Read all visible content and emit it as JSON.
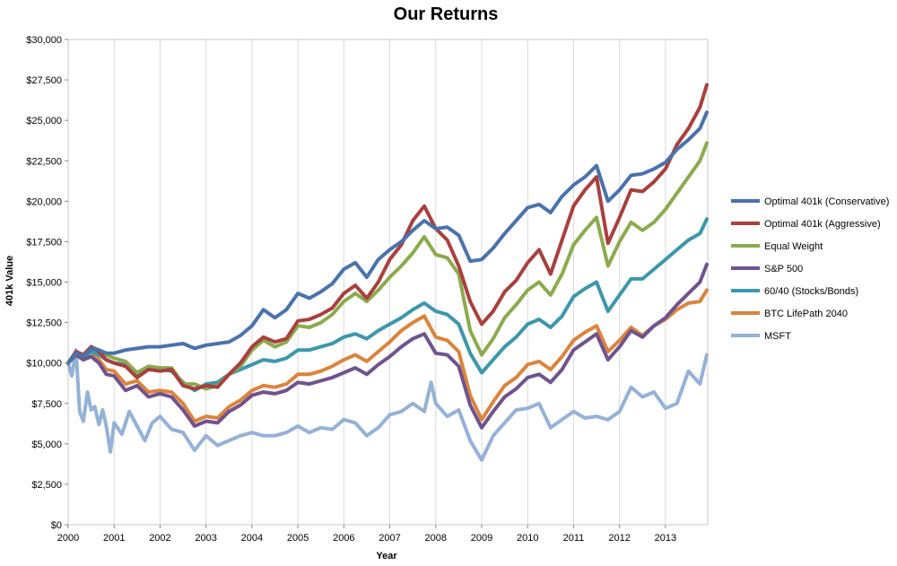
{
  "chart_data": {
    "type": "line",
    "title": "Our Returns",
    "xlabel": "Year",
    "ylabel": "401k Value",
    "xlim": [
      2000.0,
      2013.92
    ],
    "ylim": [
      0,
      30000
    ],
    "y_ticks": [
      0,
      2500,
      5000,
      7500,
      10000,
      12500,
      15000,
      17500,
      20000,
      22500,
      25000,
      27500,
      30000
    ],
    "y_tick_labels": [
      "$0",
      "$2,500",
      "$5,000",
      "$7,500",
      "$10,000",
      "$12,500",
      "$15,000",
      "$17,500",
      "$20,000",
      "$22,500",
      "$25,000",
      "$27,500",
      "$30,000"
    ],
    "x_ticks": [
      2000,
      2001,
      2002,
      2003,
      2004,
      2005,
      2006,
      2007,
      2008,
      2009,
      2010,
      2011,
      2012,
      2013
    ],
    "x_tick_labels": [
      "2000",
      "2001",
      "2002",
      "2003",
      "2004",
      "2005",
      "2006",
      "2007",
      "2008",
      "2009",
      "2010",
      "2011",
      "2012",
      "2013"
    ],
    "grid": "vertical",
    "legend": "right",
    "series": [
      {
        "name": "Optimal 401k (Conservative)",
        "color": "#4A72AC",
        "x": [
          2000.0,
          2000.17,
          2000.33,
          2000.5,
          2000.67,
          2000.83,
          2001.0,
          2001.25,
          2001.5,
          2001.75,
          2002.0,
          2002.25,
          2002.5,
          2002.75,
          2003.0,
          2003.25,
          2003.5,
          2003.75,
          2004.0,
          2004.25,
          2004.5,
          2004.75,
          2005.0,
          2005.25,
          2005.5,
          2005.75,
          2006.0,
          2006.25,
          2006.5,
          2006.75,
          2007.0,
          2007.25,
          2007.5,
          2007.75,
          2008.0,
          2008.25,
          2008.5,
          2008.75,
          2009.0,
          2009.25,
          2009.5,
          2009.75,
          2010.0,
          2010.25,
          2010.5,
          2010.75,
          2011.0,
          2011.25,
          2011.5,
          2011.75,
          2012.0,
          2012.25,
          2012.5,
          2012.75,
          2013.0,
          2013.25,
          2013.5,
          2013.75,
          2013.9
        ],
        "y": [
          10000,
          10600,
          10400,
          10900,
          10800,
          10600,
          10600,
          10800,
          10900,
          11000,
          11000,
          11100,
          11200,
          10900,
          11100,
          11200,
          11300,
          11700,
          12300,
          13300,
          12800,
          13300,
          14300,
          14000,
          14400,
          14900,
          15800,
          16200,
          15300,
          16400,
          17000,
          17500,
          18200,
          18800,
          18300,
          18400,
          17900,
          16300,
          16400,
          17100,
          18000,
          18800,
          19600,
          19800,
          19300,
          20300,
          21000,
          21500,
          22200,
          20000,
          20700,
          21600,
          21700,
          22000,
          22400,
          23200,
          23800,
          24500,
          25500
        ]
      },
      {
        "name": "Optimal 401k (Aggressive)",
        "color": "#A8403E",
        "x": [
          2000.0,
          2000.17,
          2000.33,
          2000.5,
          2000.67,
          2000.83,
          2001.0,
          2001.25,
          2001.5,
          2001.75,
          2002.0,
          2002.25,
          2002.5,
          2002.75,
          2003.0,
          2003.25,
          2003.5,
          2003.75,
          2004.0,
          2004.25,
          2004.5,
          2004.75,
          2005.0,
          2005.25,
          2005.5,
          2005.75,
          2006.0,
          2006.25,
          2006.5,
          2006.75,
          2007.0,
          2007.25,
          2007.5,
          2007.75,
          2008.0,
          2008.25,
          2008.5,
          2008.75,
          2009.0,
          2009.25,
          2009.5,
          2009.75,
          2010.0,
          2010.25,
          2010.5,
          2010.75,
          2011.0,
          2011.25,
          2011.5,
          2011.75,
          2012.0,
          2012.25,
          2012.5,
          2012.75,
          2013.0,
          2013.25,
          2013.5,
          2013.75,
          2013.9
        ],
        "y": [
          10000,
          10700,
          10500,
          11000,
          10700,
          10200,
          10000,
          9800,
          9100,
          9600,
          9500,
          9600,
          8600,
          8400,
          8600,
          8500,
          9300,
          10000,
          11000,
          11600,
          11300,
          11500,
          12600,
          12700,
          13000,
          13400,
          14300,
          14800,
          14000,
          15000,
          16400,
          17300,
          18800,
          19700,
          18300,
          17600,
          16000,
          13800,
          12400,
          13200,
          14400,
          15100,
          16200,
          17000,
          15500,
          17600,
          19700,
          20700,
          21500,
          17400,
          19000,
          20700,
          20600,
          21200,
          22000,
          23500,
          24500,
          25800,
          27200
        ]
      },
      {
        "name": "Equal Weight",
        "color": "#8CAA4E",
        "x": [
          2000.0,
          2000.17,
          2000.33,
          2000.5,
          2000.67,
          2000.83,
          2001.0,
          2001.25,
          2001.5,
          2001.75,
          2002.0,
          2002.25,
          2002.5,
          2002.75,
          2003.0,
          2003.25,
          2003.5,
          2003.75,
          2004.0,
          2004.25,
          2004.5,
          2004.75,
          2005.0,
          2005.25,
          2005.5,
          2005.75,
          2006.0,
          2006.25,
          2006.5,
          2006.75,
          2007.0,
          2007.25,
          2007.5,
          2007.75,
          2008.0,
          2008.25,
          2008.5,
          2008.75,
          2009.0,
          2009.25,
          2009.5,
          2009.75,
          2010.0,
          2010.25,
          2010.5,
          2010.75,
          2011.0,
          2011.25,
          2011.5,
          2011.75,
          2012.0,
          2012.25,
          2012.5,
          2012.75,
          2013.0,
          2013.25,
          2013.5,
          2013.75,
          2013.9
        ],
        "y": [
          10000,
          10600,
          10500,
          11000,
          10800,
          10500,
          10300,
          10100,
          9400,
          9800,
          9700,
          9700,
          8700,
          8700,
          8400,
          8600,
          9300,
          9800,
          10800,
          11400,
          11000,
          11300,
          12300,
          12200,
          12500,
          13000,
          13800,
          14300,
          13800,
          14500,
          15300,
          16000,
          16800,
          17800,
          16700,
          16500,
          15500,
          12000,
          10500,
          11500,
          12800,
          13600,
          14500,
          15000,
          14200,
          15500,
          17300,
          18200,
          19000,
          16000,
          17500,
          18700,
          18200,
          18700,
          19500,
          20500,
          21500,
          22500,
          23600
        ]
      },
      {
        "name": "S&P 500",
        "color": "#6F538D",
        "x": [
          2000.0,
          2000.17,
          2000.33,
          2000.5,
          2000.67,
          2000.83,
          2001.0,
          2001.25,
          2001.5,
          2001.75,
          2002.0,
          2002.25,
          2002.5,
          2002.75,
          2003.0,
          2003.25,
          2003.5,
          2003.75,
          2004.0,
          2004.25,
          2004.5,
          2004.75,
          2005.0,
          2005.25,
          2005.5,
          2005.75,
          2006.0,
          2006.25,
          2006.5,
          2006.75,
          2007.0,
          2007.25,
          2007.5,
          2007.75,
          2008.0,
          2008.25,
          2008.5,
          2008.75,
          2009.0,
          2009.25,
          2009.5,
          2009.75,
          2010.0,
          2010.25,
          2010.5,
          2010.75,
          2011.0,
          2011.25,
          2011.5,
          2011.75,
          2012.0,
          2012.25,
          2012.5,
          2012.75,
          2013.0,
          2013.25,
          2013.5,
          2013.75,
          2013.9
        ],
        "y": [
          10000,
          10500,
          10200,
          10400,
          10000,
          9300,
          9200,
          8300,
          8600,
          7900,
          8100,
          7900,
          7100,
          6100,
          6400,
          6300,
          7000,
          7400,
          8000,
          8200,
          8100,
          8300,
          8800,
          8700,
          8900,
          9100,
          9400,
          9700,
          9300,
          9900,
          10400,
          11000,
          11500,
          11800,
          10600,
          10500,
          9800,
          7400,
          6000,
          7000,
          7900,
          8400,
          9100,
          9300,
          8800,
          9600,
          10800,
          11300,
          11800,
          10200,
          11000,
          12000,
          11600,
          12300,
          12800,
          13600,
          14300,
          15000,
          16100
        ]
      },
      {
        "name": "60/40 (Stocks/Bonds)",
        "color": "#3D97AB",
        "x": [
          2000.0,
          2000.17,
          2000.33,
          2000.5,
          2000.67,
          2000.83,
          2001.0,
          2001.25,
          2001.5,
          2001.75,
          2002.0,
          2002.25,
          2002.5,
          2002.75,
          2003.0,
          2003.25,
          2003.5,
          2003.75,
          2004.0,
          2004.25,
          2004.5,
          2004.75,
          2005.0,
          2005.25,
          2005.5,
          2005.75,
          2006.0,
          2006.25,
          2006.5,
          2006.75,
          2007.0,
          2007.25,
          2007.5,
          2007.75,
          2008.0,
          2008.25,
          2008.5,
          2008.75,
          2009.0,
          2009.25,
          2009.5,
          2009.75,
          2010.0,
          2010.25,
          2010.5,
          2010.75,
          2011.0,
          2011.25,
          2011.5,
          2011.75,
          2012.0,
          2012.25,
          2012.5,
          2012.75,
          2013.0,
          2013.25,
          2013.5,
          2013.75,
          2013.9
        ],
        "y": [
          10000,
          10500,
          10300,
          10700,
          10500,
          10200,
          10000,
          9900,
          9300,
          9700,
          9600,
          9500,
          8800,
          8300,
          8700,
          8800,
          9300,
          9600,
          9900,
          10200,
          10100,
          10300,
          10800,
          10800,
          11000,
          11200,
          11600,
          11800,
          11500,
          12000,
          12400,
          12800,
          13300,
          13700,
          13200,
          13000,
          12400,
          10600,
          9400,
          10200,
          11000,
          11600,
          12400,
          12700,
          12200,
          12900,
          14100,
          14600,
          15000,
          13200,
          14200,
          15200,
          15200,
          15800,
          16400,
          17000,
          17600,
          18000,
          18900
        ]
      },
      {
        "name": "BTC LifePath 2040",
        "color": "#DB843D",
        "x": [
          2000.0,
          2000.17,
          2000.33,
          2000.5,
          2000.67,
          2000.83,
          2001.0,
          2001.25,
          2001.5,
          2001.75,
          2002.0,
          2002.25,
          2002.5,
          2002.75,
          2003.0,
          2003.25,
          2003.5,
          2003.75,
          2004.0,
          2004.25,
          2004.5,
          2004.75,
          2005.0,
          2005.25,
          2005.5,
          2005.75,
          2006.0,
          2006.25,
          2006.5,
          2006.75,
          2007.0,
          2007.25,
          2007.5,
          2007.75,
          2008.0,
          2008.25,
          2008.5,
          2008.75,
          2009.0,
          2009.25,
          2009.5,
          2009.75,
          2010.0,
          2010.25,
          2010.5,
          2010.75,
          2011.0,
          2011.25,
          2011.5,
          2011.75,
          2012.0,
          2012.25,
          2012.5,
          2012.75,
          2013.0,
          2013.25,
          2013.5,
          2013.75,
          2013.9
        ],
        "y": [
          10000,
          10500,
          10400,
          10700,
          10200,
          9600,
          9500,
          8700,
          8900,
          8200,
          8300,
          8200,
          7500,
          6400,
          6700,
          6600,
          7300,
          7700,
          8300,
          8600,
          8500,
          8700,
          9300,
          9300,
          9500,
          9800,
          10200,
          10500,
          10100,
          10700,
          11300,
          12000,
          12500,
          12900,
          11600,
          11400,
          10700,
          8000,
          6500,
          7600,
          8600,
          9100,
          9900,
          10100,
          9600,
          10400,
          11400,
          11900,
          12300,
          10700,
          11400,
          12200,
          11700,
          12300,
          12700,
          13300,
          13700,
          13800,
          14500
        ]
      },
      {
        "name": "MSFT",
        "color": "#95B1D6",
        "x": [
          2000.0,
          2000.08,
          2000.17,
          2000.25,
          2000.33,
          2000.42,
          2000.5,
          2000.58,
          2000.67,
          2000.75,
          2000.83,
          2000.92,
          2001.0,
          2001.17,
          2001.33,
          2001.5,
          2001.67,
          2001.83,
          2002.0,
          2002.25,
          2002.5,
          2002.75,
          2003.0,
          2003.25,
          2003.5,
          2003.75,
          2004.0,
          2004.25,
          2004.5,
          2004.75,
          2005.0,
          2005.25,
          2005.5,
          2005.75,
          2006.0,
          2006.25,
          2006.5,
          2006.75,
          2007.0,
          2007.25,
          2007.5,
          2007.75,
          2007.9,
          2008.0,
          2008.25,
          2008.5,
          2008.75,
          2009.0,
          2009.25,
          2009.5,
          2009.75,
          2010.0,
          2010.25,
          2010.5,
          2010.75,
          2011.0,
          2011.25,
          2011.5,
          2011.75,
          2012.0,
          2012.25,
          2012.5,
          2012.75,
          2013.0,
          2013.25,
          2013.5,
          2013.75,
          2013.9
        ],
        "y": [
          10000,
          9200,
          10800,
          7000,
          6400,
          8200,
          7100,
          7300,
          6200,
          7100,
          6100,
          4500,
          6300,
          5600,
          7000,
          6100,
          5200,
          6300,
          6700,
          5900,
          5700,
          4600,
          5500,
          4900,
          5200,
          5500,
          5700,
          5500,
          5500,
          5700,
          6100,
          5700,
          6000,
          5900,
          6500,
          6300,
          5500,
          6000,
          6800,
          7000,
          7500,
          7000,
          8800,
          7500,
          6700,
          7100,
          5200,
          4000,
          5500,
          6300,
          7100,
          7200,
          7500,
          6000,
          6500,
          7000,
          6600,
          6700,
          6500,
          7000,
          8500,
          7900,
          8200,
          7200,
          7500,
          9500,
          8700,
          10500
        ]
      }
    ]
  }
}
